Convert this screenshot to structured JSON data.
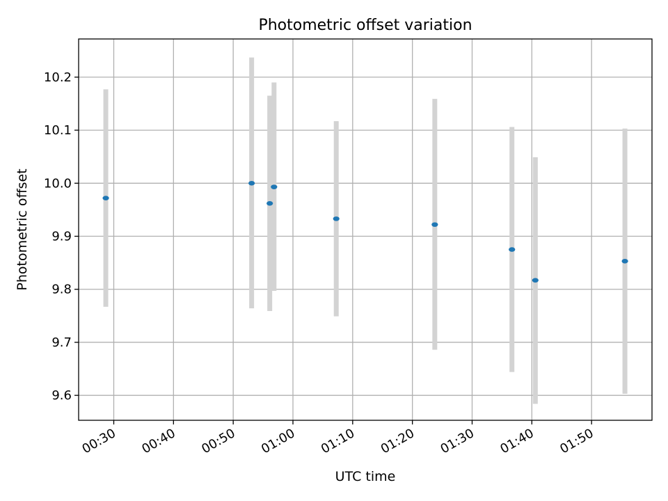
{
  "chart_data": {
    "type": "scatter",
    "title": "Photometric offset variation",
    "xlabel": "UTC time",
    "ylabel": "Photometric offset",
    "x_axis": {
      "type": "time",
      "range": [
        "00:24:07",
        "02:00:07"
      ],
      "tick_labels": [
        "00:30",
        "00:40",
        "00:50",
        "01:00",
        "01:10",
        "01:20",
        "01:30",
        "01:40",
        "01:50"
      ]
    },
    "y_axis": {
      "range": [
        9.553,
        10.272
      ],
      "tick_labels": [
        "9.6",
        "9.7",
        "9.8",
        "9.9",
        "10.0",
        "10.1",
        "10.2"
      ]
    },
    "grid": true,
    "marker_color": "#1f77b4",
    "errorbar_color": "#d3d3d3",
    "series": [
      {
        "points": [
          {
            "x": "00:28:40",
            "y": 9.972,
            "ylow": 9.767,
            "yhigh": 10.177
          },
          {
            "x": "00:53:05",
            "y": 10.0,
            "ylow": 9.764,
            "yhigh": 10.237
          },
          {
            "x": "00:56:07",
            "y": 9.962,
            "ylow": 9.759,
            "yhigh": 10.165
          },
          {
            "x": "00:56:50",
            "y": 9.993,
            "ylow": 9.797,
            "yhigh": 10.19
          },
          {
            "x": "01:07:15",
            "y": 9.933,
            "ylow": 9.749,
            "yhigh": 10.117
          },
          {
            "x": "01:23:45",
            "y": 9.922,
            "ylow": 9.686,
            "yhigh": 10.159
          },
          {
            "x": "01:36:40",
            "y": 9.875,
            "ylow": 9.644,
            "yhigh": 10.106
          },
          {
            "x": "01:40:35",
            "y": 9.817,
            "ylow": 9.584,
            "yhigh": 10.049
          },
          {
            "x": "01:55:35",
            "y": 9.853,
            "ylow": 9.603,
            "yhigh": 10.103
          }
        ]
      }
    ]
  }
}
